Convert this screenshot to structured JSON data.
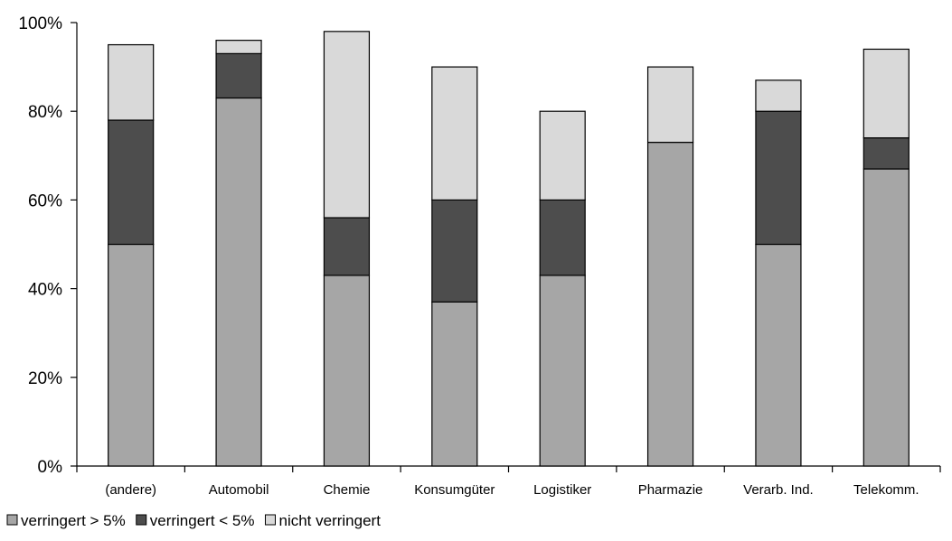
{
  "chart_data": {
    "type": "bar",
    "stacked": true,
    "categories": [
      "(andere)",
      "Automobil",
      "Chemie",
      "Konsumgüter",
      "Logistiker",
      "Pharmazie",
      "Verarb. Ind.",
      "Telekomm."
    ],
    "series": [
      {
        "name": "verringert > 5%",
        "color": "#a6a6a6",
        "values": [
          50,
          83,
          43,
          37,
          43,
          73,
          50,
          67
        ]
      },
      {
        "name": "verringert < 5%",
        "color": "#4d4d4d",
        "values": [
          28,
          10,
          13,
          23,
          17,
          0,
          30,
          7
        ]
      },
      {
        "name": "nicht verringert",
        "color": "#d9d9d9",
        "values": [
          17,
          3,
          42,
          30,
          20,
          17,
          7,
          20
        ]
      }
    ],
    "yticks": [
      "0%",
      "20%",
      "40%",
      "60%",
      "80%",
      "100%"
    ],
    "ylim": [
      0,
      100
    ],
    "legend_position": "bottom-left",
    "grid": false
  }
}
